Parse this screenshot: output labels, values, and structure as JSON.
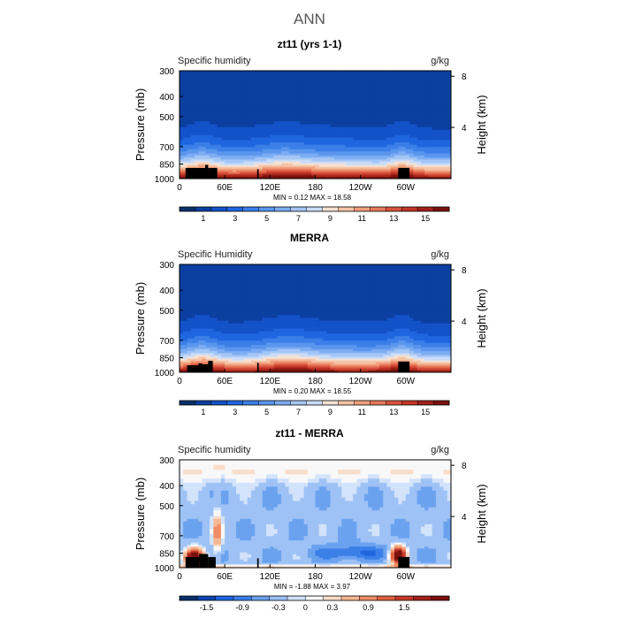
{
  "page_title": "ANN",
  "chart_data": [
    {
      "type": "heatmap",
      "title": "zt11 (yrs 1-1)",
      "left_label": "Specific humidity",
      "right_label": "g/kg",
      "ylabel": "Pressure (mb)",
      "ylabel_right": "Height (km)",
      "x_ticks": [
        "0",
        "60E",
        "120E",
        "180",
        "120W",
        "60W"
      ],
      "y_ticks": [
        "300",
        "400",
        "500",
        "700",
        "850",
        "1000"
      ],
      "y_ticks_right": [
        "8",
        "4"
      ],
      "stats_text": "MIN =     0.12   MAX =    18.58",
      "min": 0.12,
      "max": 18.58,
      "colorbar": {
        "labels": [
          "1",
          "3",
          "5",
          "7",
          "9",
          "11",
          "13",
          "15"
        ],
        "colors": [
          "#08306b",
          "#0b3fa0",
          "#1352c8",
          "#1f66e0",
          "#3b7fe8",
          "#5a96ee",
          "#7dadf2",
          "#a4c6f6",
          "#c8dcfa",
          "#f4e1d2",
          "#f6c3a6",
          "#f19f7b",
          "#e8785a",
          "#d9533d",
          "#c23626",
          "#a1221a",
          "#7a120e"
        ]
      }
    },
    {
      "type": "heatmap",
      "title": "MERRA",
      "left_label": "Specific Humidity",
      "right_label": "g/kg",
      "ylabel": "Pressure (mb)",
      "ylabel_right": "Height (km)",
      "x_ticks": [
        "0",
        "60E",
        "120E",
        "180",
        "120W",
        "60W"
      ],
      "y_ticks": [
        "300",
        "400",
        "500",
        "700",
        "850",
        "1000"
      ],
      "y_ticks_right": [
        "8",
        "4"
      ],
      "stats_text": "MIN =     0.20   MAX =    18.55",
      "min": 0.2,
      "max": 18.55,
      "colorbar": {
        "labels": [
          "1",
          "3",
          "5",
          "7",
          "9",
          "11",
          "13",
          "15"
        ],
        "colors": [
          "#08306b",
          "#0b3fa0",
          "#1352c8",
          "#1f66e0",
          "#3b7fe8",
          "#5a96ee",
          "#7dadf2",
          "#a4c6f6",
          "#c8dcfa",
          "#f4e1d2",
          "#f6c3a6",
          "#f19f7b",
          "#e8785a",
          "#d9533d",
          "#c23626",
          "#a1221a",
          "#7a120e"
        ]
      }
    },
    {
      "type": "heatmap",
      "title": "zt11 - MERRA",
      "left_label": "Specific humidity",
      "right_label": "g/kg",
      "ylabel": "Pressure (mb)",
      "ylabel_right": "Height (km)",
      "x_ticks": [
        "0",
        "60E",
        "120E",
        "180",
        "120W",
        "60W"
      ],
      "y_ticks": [
        "300",
        "400",
        "500",
        "700",
        "850",
        "1000"
      ],
      "y_ticks_right": [
        "8",
        "4"
      ],
      "stats_text": "MIN =    -1.88   MAX =    3.97",
      "min": -1.88,
      "max": 3.97,
      "colorbar": {
        "labels": [
          "-1.5",
          "-0.9",
          "-0.3",
          "0",
          "0.3",
          "0.9",
          "1.5"
        ],
        "colors": [
          "#08306b",
          "#0d44b0",
          "#1f66e0",
          "#3b7fe8",
          "#6aa2f0",
          "#9ec2f5",
          "#d2e3fb",
          "#f8f8f8",
          "#fbdcc8",
          "#f6b894",
          "#ee8d66",
          "#e0603f",
          "#c83a28",
          "#a4201a",
          "#7a120e"
        ]
      }
    }
  ]
}
